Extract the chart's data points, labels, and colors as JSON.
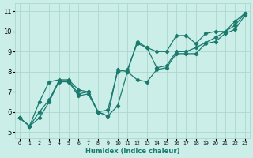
{
  "xlabel": "Humidex (Indice chaleur)",
  "background_color": "#cceee8",
  "grid_color": "#aad8d0",
  "line_color": "#1a7a6e",
  "xlim": [
    -0.5,
    23.5
  ],
  "ylim": [
    4.7,
    11.4
  ],
  "xticks": [
    0,
    1,
    2,
    3,
    4,
    5,
    6,
    7,
    8,
    9,
    10,
    11,
    12,
    13,
    14,
    15,
    16,
    17,
    18,
    19,
    20,
    21,
    22,
    23
  ],
  "yticks": [
    5,
    6,
    7,
    8,
    9,
    10,
    11
  ],
  "x": [
    0,
    1,
    2,
    3,
    4,
    5,
    6,
    7,
    8,
    9,
    10,
    11,
    12,
    13,
    14,
    15,
    16,
    17,
    18,
    19,
    20,
    21,
    22,
    23
  ],
  "y_low": [
    5.7,
    5.3,
    5.7,
    6.5,
    7.5,
    7.5,
    6.8,
    6.9,
    6.0,
    5.8,
    6.3,
    8.0,
    7.6,
    7.5,
    8.1,
    8.2,
    8.9,
    8.9,
    8.9,
    9.4,
    9.5,
    9.9,
    10.1,
    10.8
  ],
  "y_mid": [
    5.7,
    5.3,
    6.0,
    6.6,
    7.55,
    7.55,
    6.9,
    7.0,
    6.0,
    6.1,
    8.0,
    8.1,
    9.4,
    9.2,
    8.2,
    8.3,
    9.0,
    9.0,
    9.2,
    9.45,
    9.7,
    10.0,
    10.3,
    10.9
  ],
  "y_high": [
    5.7,
    5.3,
    6.5,
    7.5,
    7.6,
    7.6,
    7.1,
    7.0,
    6.0,
    5.8,
    8.1,
    8.0,
    9.5,
    9.2,
    9.0,
    9.0,
    9.8,
    9.8,
    9.4,
    9.9,
    10.0,
    10.0,
    10.5,
    10.9
  ]
}
